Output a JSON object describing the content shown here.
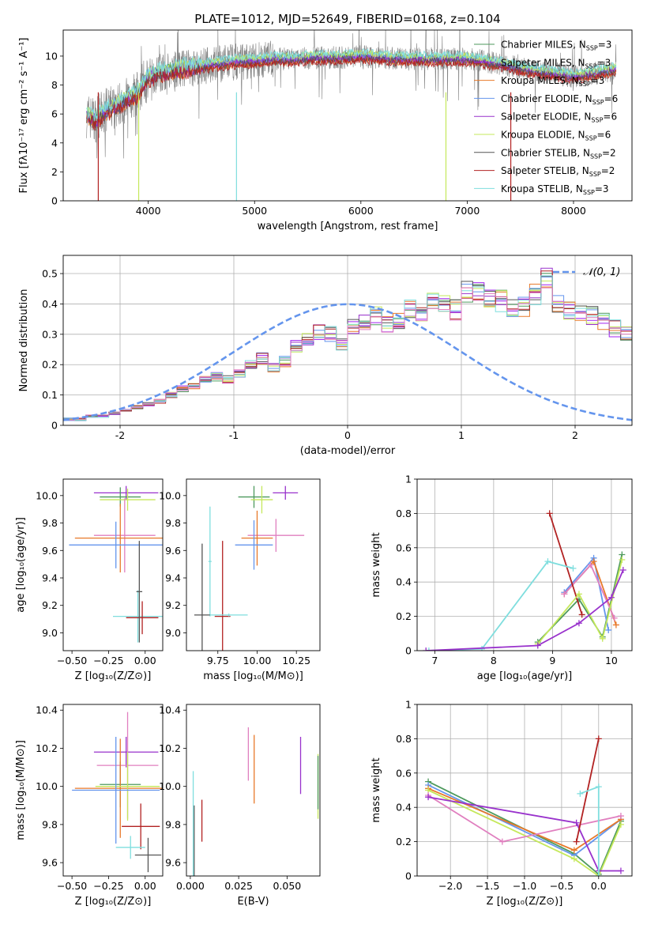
{
  "figure_title": "PLATE=1012, MJD=52649, FIBERID=0168, z=0.104",
  "colors": {
    "chabrier_miles": "#4e9a5e",
    "salpeter_miles": "#a020f0",
    "kroupa_miles": "#e8792a",
    "chabrier_elodie": "#6495ed",
    "salpeter_elodie": "#9932cc",
    "kroupa_elodie": "#c5e85b",
    "chabrier_stelib": "#555555",
    "salpeter_stelib": "#b22222",
    "kroupa_stelib": "#7fdede",
    "pink": "#e07fbf",
    "data": "#808080",
    "normal_curve": "#6495ed"
  },
  "chart_data": [
    {
      "id": "spectrum",
      "type": "line",
      "xlabel": "wavelength [Angstrom, rest frame]",
      "ylabel": "Flux [fλ10⁻¹⁷ erg cm⁻² s⁻¹ A⁻¹]",
      "xlim": [
        3200,
        8550
      ],
      "ylim": [
        0,
        11.8
      ],
      "xticks": [
        4000,
        5000,
        6000,
        7000,
        8000
      ],
      "yticks": [
        0,
        2,
        4,
        6,
        8,
        10
      ],
      "grid": false,
      "legend_position": "top-right",
      "continuum": {
        "x": [
          3400,
          3500,
          3600,
          3700,
          3800,
          3900,
          4000,
          4200,
          4400,
          4600,
          4800,
          5000,
          5200,
          5400,
          5600,
          5800,
          6000,
          6200,
          6400,
          6600,
          6800,
          7000,
          7200,
          7400,
          7600,
          7800,
          8000,
          8200,
          8400
        ],
        "y": [
          6.0,
          5.6,
          6.2,
          6.6,
          7.0,
          7.4,
          8.6,
          9.0,
          9.2,
          9.4,
          9.6,
          9.7,
          9.8,
          9.8,
          9.9,
          9.9,
          10.0,
          9.9,
          9.8,
          9.8,
          9.8,
          9.8,
          9.6,
          9.3,
          9.0,
          8.8,
          8.6,
          8.8,
          9.1
        ]
      },
      "series": [
        {
          "name": "Chabrier MILES, N_SSP=3",
          "color": "#4e9a5e",
          "offset": 0.12
        },
        {
          "name": "Salpeter MILES, N_SSP=3",
          "color": "#a020f0",
          "offset": -0.1
        },
        {
          "name": "Kroupa MILES, N_SSP=3",
          "color": "#e8792a",
          "offset": -0.2
        },
        {
          "name": "Chabrier ELODIE, N_SSP=6",
          "color": "#6495ed",
          "offset": 0.05
        },
        {
          "name": "Salpeter ELODIE, N_SSP=6",
          "color": "#9932cc",
          "offset": -0.05
        },
        {
          "name": "Kroupa ELODIE, N_SSP=6",
          "color": "#c5e85b",
          "offset": 0.2
        },
        {
          "name": "Chabrier STELIB, N_SSP=2",
          "color": "#555555",
          "offset": -0.15
        },
        {
          "name": "Salpeter STELIB, N_SSP=2",
          "color": "#b22222",
          "offset": -0.3
        },
        {
          "name": "Kroupa STELIB, N_SSP=3",
          "color": "#7fdede",
          "offset": 0.3
        }
      ],
      "dropouts": [
        {
          "x": 3530,
          "color": "#b22222"
        },
        {
          "x": 3910,
          "color": "#c5e85b"
        },
        {
          "x": 4830,
          "color": "#7fdede"
        },
        {
          "x": 6800,
          "color": "#c5e85b"
        },
        {
          "x": 7410,
          "color": "#b22222"
        }
      ]
    },
    {
      "id": "residuals",
      "type": "line",
      "xlabel": "(data-model)/error",
      "ylabel": "Normed distribution",
      "xlim": [
        -2.5,
        2.5
      ],
      "ylim": [
        0,
        0.56
      ],
      "xticks": [
        -2,
        -1,
        0,
        1,
        2
      ],
      "yticks": [
        0.0,
        0.1,
        0.2,
        0.3,
        0.4,
        0.5
      ],
      "grid": true,
      "legend_position": "top-right",
      "normal_curve_label": "𝒩(0, 1)",
      "bin_edges_start": -2.5,
      "bin_width": 0.1,
      "histogram_colors": [
        "#4e9a5e",
        "#a020f0",
        "#e8792a",
        "#6495ed",
        "#9932cc",
        "#c5e85b",
        "#555555",
        "#b22222",
        "#7fdede",
        "#e07fbf"
      ],
      "histogram_base": [
        0.02,
        0.02,
        0.03,
        0.03,
        0.04,
        0.05,
        0.06,
        0.07,
        0.08,
        0.1,
        0.12,
        0.13,
        0.15,
        0.16,
        0.15,
        0.17,
        0.2,
        0.22,
        0.19,
        0.21,
        0.26,
        0.28,
        0.31,
        0.3,
        0.27,
        0.33,
        0.34,
        0.36,
        0.33,
        0.35,
        0.38,
        0.37,
        0.4,
        0.41,
        0.38,
        0.44,
        0.45,
        0.42,
        0.41,
        0.38,
        0.39,
        0.43,
        0.48,
        0.4,
        0.38,
        0.37,
        0.36,
        0.34,
        0.32,
        0.3,
        0.28,
        0.32,
        0.33,
        0.29,
        0.27,
        0.24,
        0.26,
        0.2,
        0.22,
        0.19,
        0.16,
        0.15,
        0.13,
        0.12,
        0.11,
        0.09,
        0.08,
        0.07,
        0.06,
        0.05,
        0.05,
        0.04,
        0.04,
        0.03,
        0.03,
        0.03,
        0.03,
        0.03,
        0.02,
        0.02
      ]
    },
    {
      "id": "age-vs-Z",
      "type": "scatter",
      "xlabel": "Z [log₁₀(Z/Z⊙)]",
      "ylabel": "age  [log₁₀(age/yr)]",
      "xlim": [
        -0.56,
        0.12
      ],
      "ylim": [
        8.87,
        10.12
      ],
      "xticks": [
        -0.5,
        -0.25,
        0.0
      ],
      "xticklabels": [
        "−0.50",
        "−0.25",
        "0.00"
      ],
      "yticks": [
        9.0,
        9.2,
        9.4,
        9.6,
        9.8,
        10.0
      ],
      "yticklabels": [
        "9.0",
        "9.2",
        "9.4",
        "9.6",
        "9.8",
        "10.0"
      ],
      "grid": false,
      "points": [
        {
          "x": -0.13,
          "y": 10.02,
          "xerr": 0.22,
          "yerr": 0.05,
          "color": "#9932cc"
        },
        {
          "x": -0.17,
          "y": 9.99,
          "xerr": 0.14,
          "yerr": 0.07,
          "color": "#4e9a5e"
        },
        {
          "x": -0.12,
          "y": 9.97,
          "xerr": 0.19,
          "yerr": 0.08,
          "color": "#c5e85b"
        },
        {
          "x": -0.14,
          "y": 9.71,
          "xerr": 0.21,
          "yerr": 0.27,
          "color": "#e07fbf"
        },
        {
          "x": -0.17,
          "y": 9.69,
          "xerr": 0.31,
          "yerr": 0.25,
          "color": "#e8792a"
        },
        {
          "x": -0.2,
          "y": 9.64,
          "xerr": 0.32,
          "yerr": 0.17,
          "color": "#6495ed"
        },
        {
          "x": -0.05,
          "y": 9.12,
          "xerr": 0.17,
          "yerr": 0.19,
          "color": "#7fdede"
        },
        {
          "x": -0.02,
          "y": 9.11,
          "xerr": 0.11,
          "yerr": 0.12,
          "color": "#b22222"
        },
        {
          "x": -0.04,
          "y": 9.3,
          "xerr": 0.02,
          "yerr": 0.37,
          "color": "#555555"
        }
      ]
    },
    {
      "id": "age-vs-mass",
      "type": "scatter",
      "xlabel": "mass [log₁₀(M/M⊙)]",
      "ylabel": "",
      "xlim": [
        9.55,
        10.4
      ],
      "ylim": [
        8.87,
        10.12
      ],
      "xticks": [
        9.75,
        10.0,
        10.25
      ],
      "xticklabels": [
        "9.75",
        "10.00",
        "10.25"
      ],
      "yticks": [
        9.0,
        9.2,
        9.4,
        9.6,
        9.8,
        10.0
      ],
      "yticklabels": [
        "9.0",
        "9.2",
        "9.4",
        "9.6",
        "9.8",
        "10.0"
      ],
      "grid": false,
      "points": [
        {
          "x": 10.18,
          "y": 10.02,
          "xerr": 0.08,
          "yerr": 0.05,
          "color": "#9932cc"
        },
        {
          "x": 9.98,
          "y": 9.99,
          "xerr": 0.1,
          "yerr": 0.08,
          "color": "#4e9a5e"
        },
        {
          "x": 10.03,
          "y": 9.97,
          "xerr": 0.07,
          "yerr": 0.1,
          "color": "#c5e85b"
        },
        {
          "x": 10.12,
          "y": 9.71,
          "xerr": 0.18,
          "yerr": 0.12,
          "color": "#e07fbf"
        },
        {
          "x": 10.0,
          "y": 9.69,
          "xerr": 0.1,
          "yerr": 0.2,
          "color": "#e8792a"
        },
        {
          "x": 9.98,
          "y": 9.64,
          "xerr": 0.12,
          "yerr": 0.18,
          "color": "#6495ed"
        },
        {
          "x": 9.7,
          "y": 9.52,
          "xerr": 0.01,
          "yerr": 0.4,
          "color": "#7fdede"
        },
        {
          "x": 9.78,
          "y": 9.12,
          "xerr": 0.05,
          "yerr": 0.55,
          "color": "#b22222"
        },
        {
          "x": 9.65,
          "y": 9.13,
          "xerr": 0.05,
          "yerr": 0.52,
          "color": "#555555"
        },
        {
          "x": 9.82,
          "y": 9.13,
          "xerr": 0.12,
          "yerr": 0.01,
          "color": "#7fdede"
        }
      ]
    },
    {
      "id": "mass-weight-vs-age",
      "type": "line",
      "xlabel": "age  [log₁₀(age/yr)]",
      "ylabel": "mass weight",
      "xlim": [
        6.7,
        10.35
      ],
      "ylim": [
        0,
        1.0
      ],
      "xticks": [
        7,
        8,
        9,
        10
      ],
      "yticks": [
        0.0,
        0.2,
        0.4,
        0.6,
        0.8,
        1.0
      ],
      "grid": true,
      "series": [
        {
          "color": "#4e9a5e",
          "x": [
            8.75,
            9.45,
            9.85,
            10.18
          ],
          "y": [
            0.05,
            0.3,
            0.08,
            0.56
          ]
        },
        {
          "color": "#6495ed",
          "x": [
            9.2,
            9.7,
            9.95
          ],
          "y": [
            0.34,
            0.54,
            0.12
          ]
        },
        {
          "color": "#e8792a",
          "x": [
            9.2,
            9.7,
            10.08
          ],
          "y": [
            0.33,
            0.52,
            0.15
          ]
        },
        {
          "color": "#e07fbf",
          "x": [
            9.2,
            9.65,
            10.05
          ],
          "y": [
            0.33,
            0.5,
            0.19
          ]
        },
        {
          "color": "#b22222",
          "x": [
            8.95,
            9.5
          ],
          "y": [
            0.8,
            0.21
          ]
        },
        {
          "color": "#7fdede",
          "x": [
            6.9,
            7.8,
            8.92,
            9.35
          ],
          "y": [
            0.0,
            0.01,
            0.52,
            0.48
          ]
        },
        {
          "color": "#c5e85b",
          "x": [
            8.75,
            9.45,
            9.85,
            10.18
          ],
          "y": [
            0.04,
            0.33,
            0.07,
            0.53
          ]
        },
        {
          "color": "#9932cc",
          "x": [
            6.85,
            8.75,
            9.45,
            10.0,
            10.2
          ],
          "y": [
            0.0,
            0.03,
            0.16,
            0.31,
            0.47
          ]
        }
      ]
    },
    {
      "id": "mass-vs-Z",
      "type": "scatter",
      "xlabel": "Z [log₁₀(Z/Z⊙)]",
      "ylabel": "mass [log₁₀(M/M⊙)]",
      "xlim": [
        -0.56,
        0.12
      ],
      "ylim": [
        9.53,
        10.43
      ],
      "xticks": [
        -0.5,
        -0.25,
        0.0
      ],
      "xticklabels": [
        "−0.50",
        "−0.25",
        "0.00"
      ],
      "yticks": [
        9.6,
        9.8,
        10.0,
        10.2,
        10.4
      ],
      "yticklabels": [
        "9.6",
        "9.8",
        "10.0",
        "10.2",
        "10.4"
      ],
      "grid": false,
      "points": [
        {
          "x": -0.13,
          "y": 10.18,
          "xerr": 0.22,
          "yerr": 0.08,
          "color": "#9932cc"
        },
        {
          "x": -0.12,
          "y": 10.11,
          "xerr": 0.21,
          "yerr": 0.28,
          "color": "#e07fbf"
        },
        {
          "x": -0.17,
          "y": 10.01,
          "xerr": 0.14,
          "yerr": 0.12,
          "color": "#4e9a5e"
        },
        {
          "x": -0.17,
          "y": 9.99,
          "xerr": 0.31,
          "yerr": 0.26,
          "color": "#e8792a"
        },
        {
          "x": -0.12,
          "y": 10.0,
          "xerr": 0.22,
          "yerr": 0.18,
          "color": "#c5e85b"
        },
        {
          "x": -0.2,
          "y": 9.98,
          "xerr": 0.3,
          "yerr": 0.28,
          "color": "#6495ed"
        },
        {
          "x": -0.03,
          "y": 9.79,
          "xerr": 0.13,
          "yerr": 0.12,
          "color": "#b22222"
        },
        {
          "x": -0.1,
          "y": 9.68,
          "xerr": 0.1,
          "yerr": 0.06,
          "color": "#7fdede"
        },
        {
          "x": 0.02,
          "y": 9.64,
          "xerr": 0.09,
          "yerr": 0.09,
          "color": "#555555"
        }
      ]
    },
    {
      "id": "mass-vs-ebv",
      "type": "scatter",
      "xlabel": "E(B-V)",
      "ylabel": "",
      "xlim": [
        -0.002,
        0.067
      ],
      "ylim": [
        9.53,
        10.43
      ],
      "xticks": [
        0.0,
        0.025,
        0.05
      ],
      "xticklabels": [
        "0.000",
        "0.025",
        "0.050"
      ],
      "yticks": [
        9.6,
        9.8,
        10.0,
        10.2,
        10.4
      ],
      "yticklabels": [
        "9.6",
        "9.8",
        "10.0",
        "10.2",
        "10.4"
      ],
      "grid": false,
      "points": [
        {
          "x": 0.002,
          "y": 9.7,
          "xerr": 0,
          "yerr": 0.2,
          "color": "#555555"
        },
        {
          "x": 0.006,
          "y": 9.82,
          "xerr": 0,
          "yerr": 0.11,
          "color": "#b22222"
        },
        {
          "x": 0.0015,
          "y": 9.78,
          "xerr": 0,
          "yerr": 0.3,
          "color": "#7fdede"
        },
        {
          "x": 0.03,
          "y": 10.17,
          "xerr": 0,
          "yerr": 0.14,
          "color": "#e07fbf"
        },
        {
          "x": 0.033,
          "y": 10.09,
          "xerr": 0,
          "yerr": 0.18,
          "color": "#e8792a"
        },
        {
          "x": 0.057,
          "y": 10.11,
          "xerr": 0,
          "yerr": 0.15,
          "color": "#9932cc"
        },
        {
          "x": 0.066,
          "y": 10.0,
          "xerr": 0,
          "yerr": 0.17,
          "color": "#c5e85b"
        },
        {
          "x": 0.066,
          "y": 10.02,
          "xerr": 0,
          "yerr": 0.14,
          "color": "#4e9a5e"
        }
      ]
    },
    {
      "id": "mass-weight-vs-Z",
      "type": "line",
      "xlabel": "Z [log₁₀(Z/Z⊙)]",
      "ylabel": "mass weight",
      "xlim": [
        -2.45,
        0.45
      ],
      "ylim": [
        0,
        1.0
      ],
      "xticks": [
        -2.0,
        -1.5,
        -1.0,
        -0.5,
        0.0
      ],
      "xticklabels": [
        "−2.0",
        "−1.5",
        "−1.0",
        "−0.5",
        "0.0"
      ],
      "yticks": [
        0.0,
        0.2,
        0.4,
        0.6,
        0.8,
        1.0
      ],
      "grid": true,
      "series": [
        {
          "color": "#4e9a5e",
          "x": [
            -2.3,
            -0.33,
            0.0,
            0.3
          ],
          "y": [
            0.55,
            0.13,
            0.01,
            0.32
          ]
        },
        {
          "color": "#6495ed",
          "x": [
            -2.3,
            -0.33,
            0.3
          ],
          "y": [
            0.53,
            0.12,
            0.33
          ]
        },
        {
          "color": "#e8792a",
          "x": [
            -2.3,
            -0.33,
            0.3
          ],
          "y": [
            0.51,
            0.15,
            0.33
          ]
        },
        {
          "color": "#c5e85b",
          "x": [
            -2.3,
            -0.33,
            0.0,
            0.3
          ],
          "y": [
            0.5,
            0.1,
            0.0,
            0.3
          ]
        },
        {
          "color": "#e07fbf",
          "x": [
            -2.3,
            -1.3,
            0.3
          ],
          "y": [
            0.47,
            0.2,
            0.35
          ]
        },
        {
          "color": "#9932cc",
          "x": [
            -2.3,
            -0.3,
            0.0,
            0.3
          ],
          "y": [
            0.46,
            0.31,
            0.03,
            0.03
          ]
        },
        {
          "color": "#b22222",
          "x": [
            -0.3,
            0.0
          ],
          "y": [
            0.2,
            0.8
          ]
        },
        {
          "color": "#7fdede",
          "x": [
            -0.25,
            0.0,
            0.0
          ],
          "y": [
            0.48,
            0.52,
            0.0
          ]
        }
      ]
    }
  ]
}
